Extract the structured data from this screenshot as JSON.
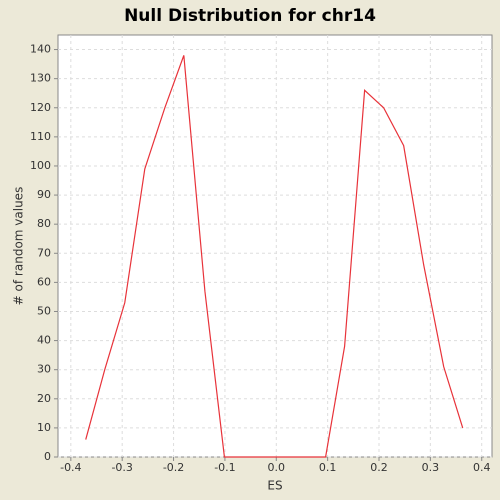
{
  "chart_data": {
    "type": "line",
    "title": "Null Distribution for chr14",
    "x_label": "ES",
    "y_label": "# of random values",
    "x": [
      -0.371,
      -0.334,
      -0.295,
      -0.256,
      -0.217,
      -0.18,
      -0.139,
      -0.101,
      -0.062,
      -0.023,
      0.017,
      0.056,
      0.096,
      0.133,
      0.172,
      0.209,
      0.248,
      0.287,
      0.326,
      0.363
    ],
    "series": [
      {
        "color": "#e8333a",
        "values": [
          6,
          30,
          53,
          99,
          120,
          138,
          57,
          0,
          0,
          0,
          0,
          0,
          0,
          38,
          126,
          120,
          107,
          66,
          31,
          10
        ]
      }
    ],
    "xlim": [
      -0.425,
      0.42
    ],
    "ylim": [
      0,
      145
    ],
    "xticks": [
      -0.4,
      -0.3,
      -0.2,
      -0.1,
      {
        "value": 0,
        "label": "0.0"
      },
      0.1,
      0.2,
      0.3,
      0.4
    ],
    "yticks": [
      0,
      10,
      20,
      30,
      40,
      50,
      60,
      70,
      80,
      90,
      100,
      110,
      120,
      130,
      140
    ],
    "grid": true
  }
}
